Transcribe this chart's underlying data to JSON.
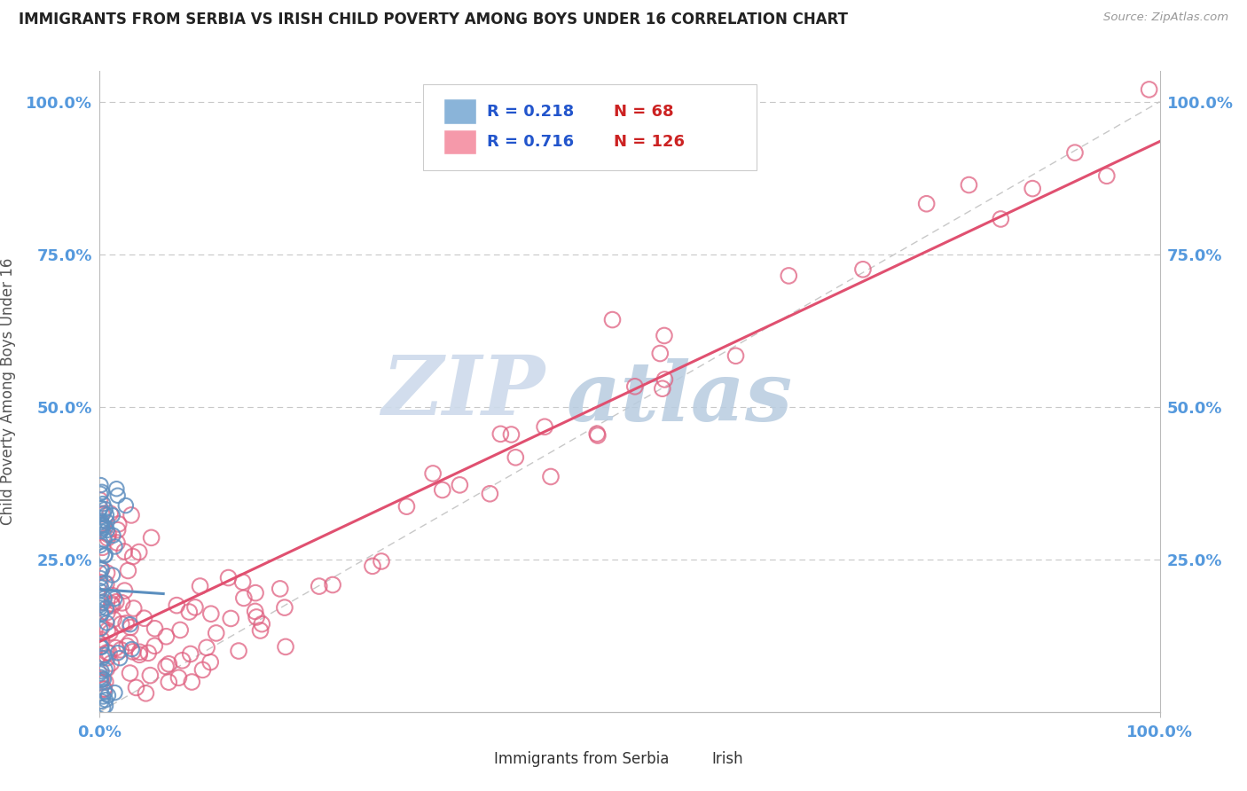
{
  "title": "IMMIGRANTS FROM SERBIA VS IRISH CHILD POVERTY AMONG BOYS UNDER 16 CORRELATION CHART",
  "source": "Source: ZipAtlas.com",
  "ylabel": "Child Poverty Among Boys Under 16",
  "legend_serbia_r": "0.218",
  "legend_serbia_n": "68",
  "legend_irish_r": "0.716",
  "legend_irish_n": "126",
  "serbia_color": "#8ab4d9",
  "irish_color": "#f599aa",
  "serbia_edge_color": "#6090c0",
  "irish_edge_color": "#e06080",
  "serbia_line_color": "#5b8fbf",
  "irish_line_color": "#e05070",
  "ref_line_color": "#c8c8c8",
  "watermark_text": "ZIPatlas",
  "watermark_color": "#cddaeb",
  "title_color": "#222222",
  "ylabel_color": "#555555",
  "tick_label_color": "#5599dd",
  "legend_r_color": "#2255cc",
  "legend_n_color": "#cc2222",
  "bg_color": "#ffffff"
}
